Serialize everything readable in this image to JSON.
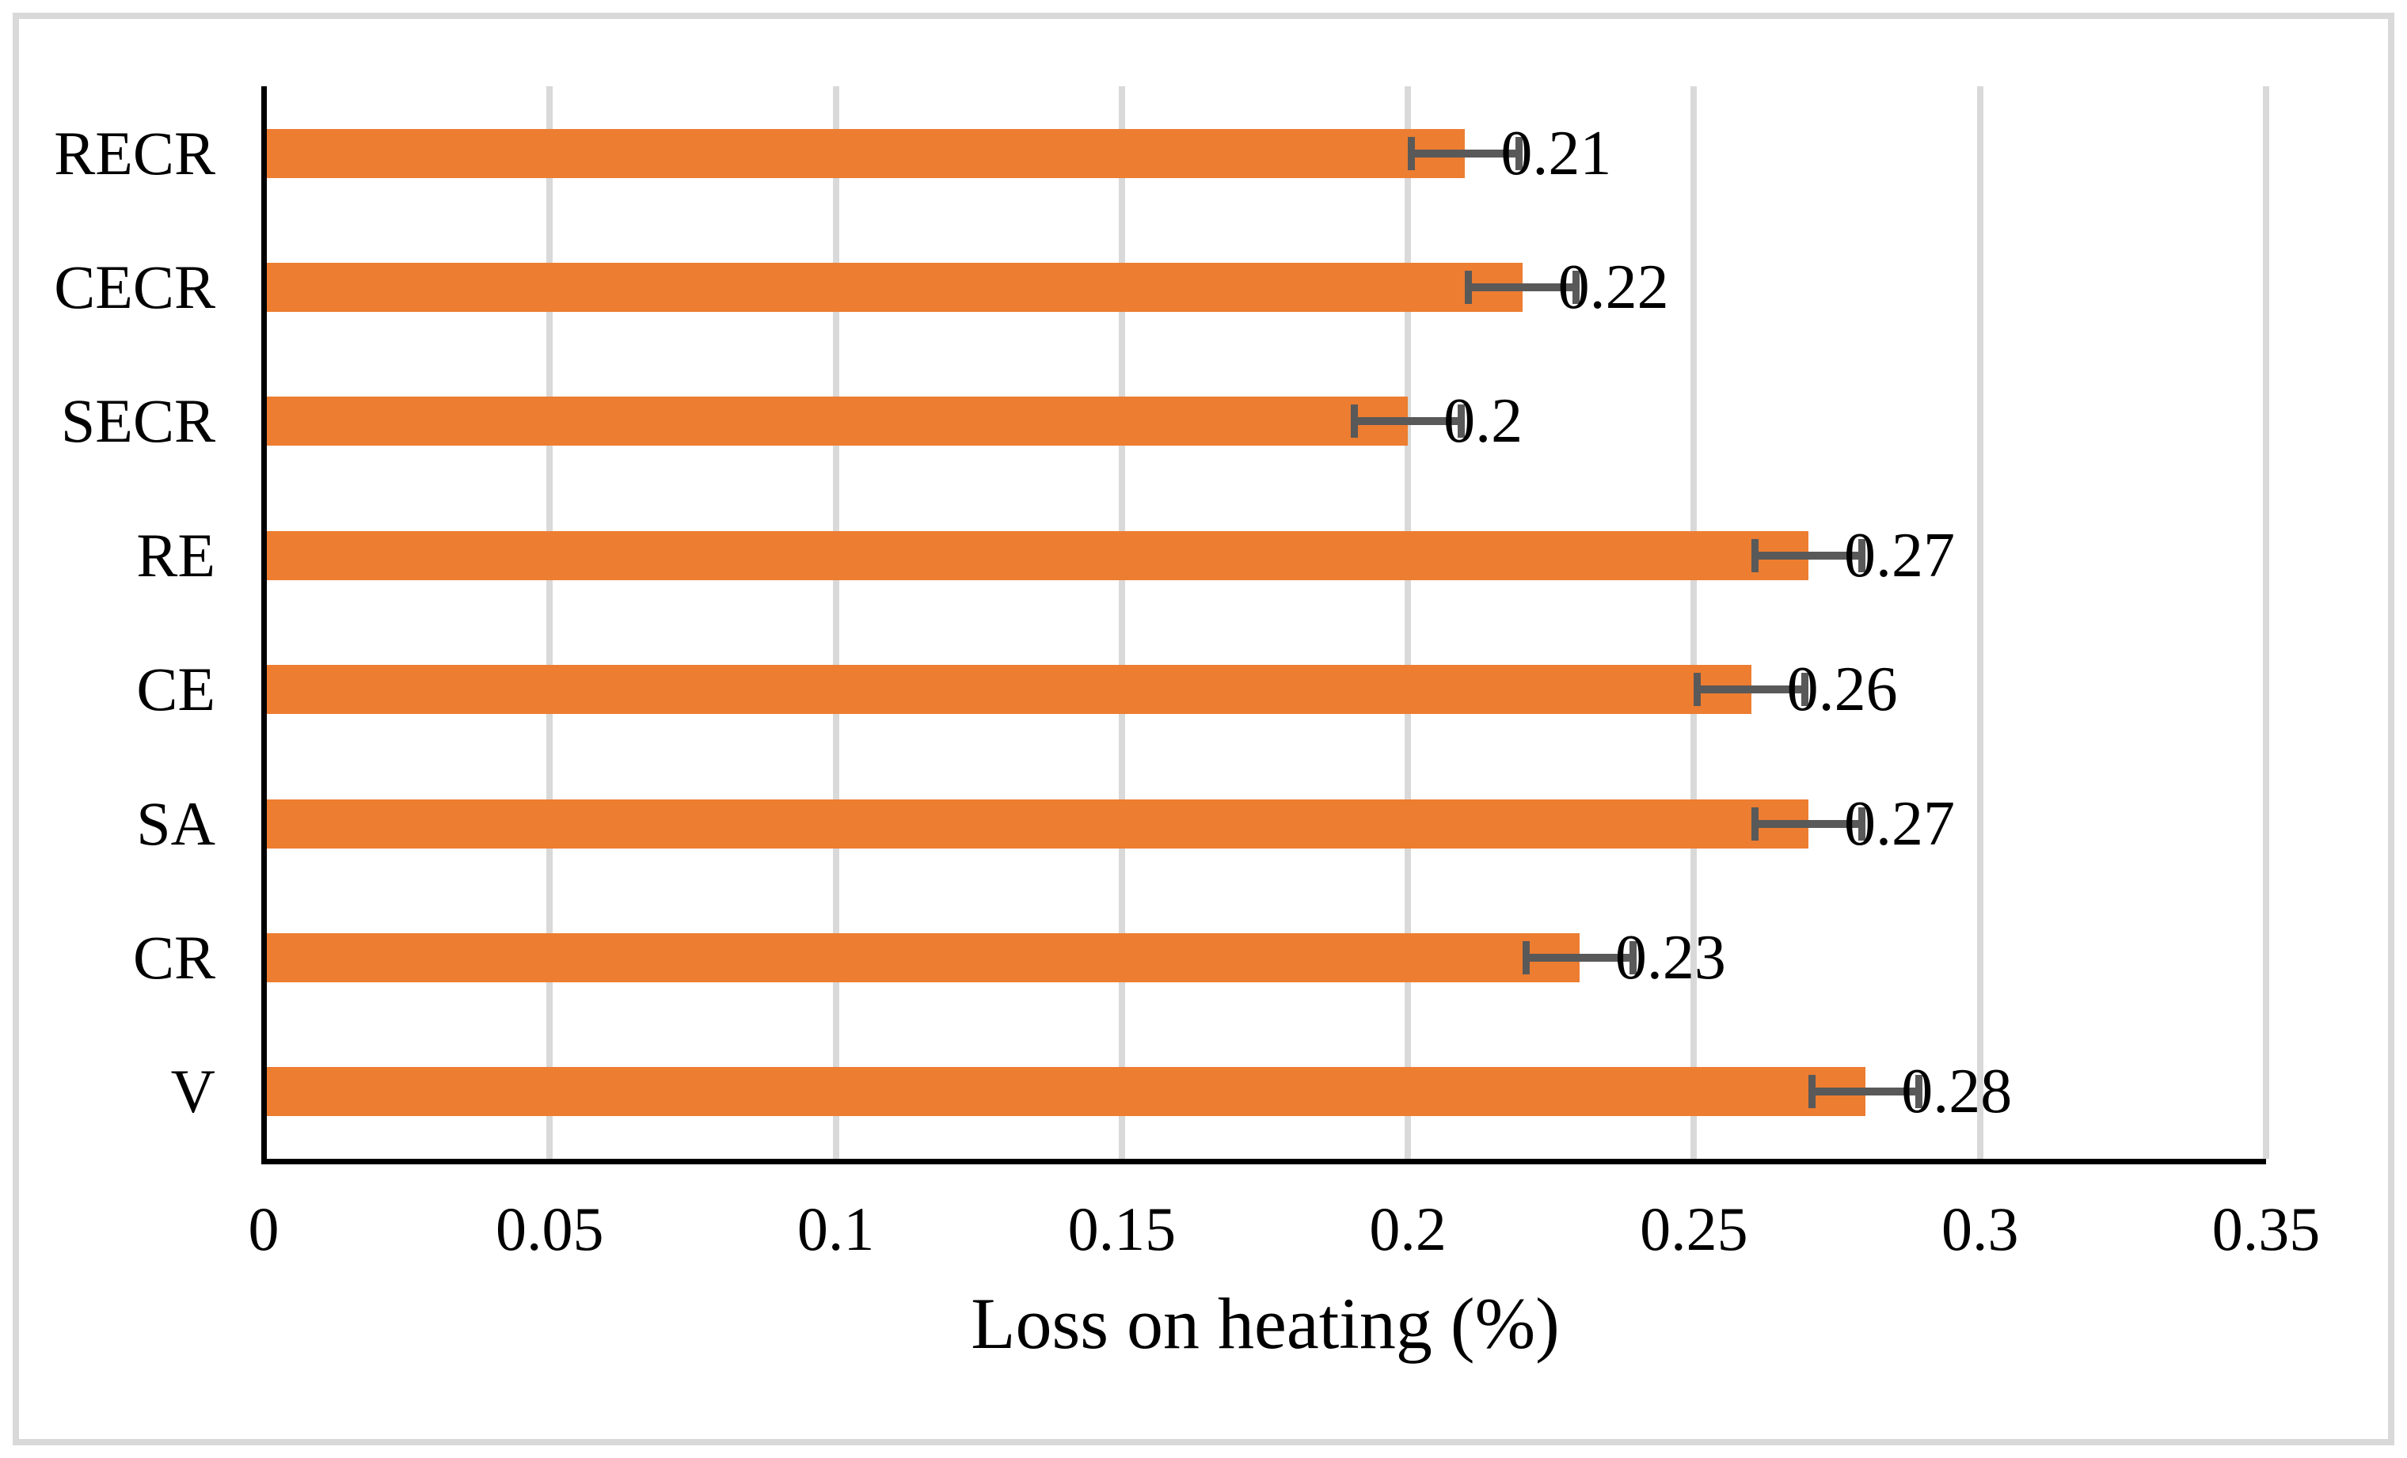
{
  "chart_data": {
    "type": "bar",
    "orientation": "horizontal",
    "title": "",
    "xlabel": "Loss on heating (%)",
    "ylabel": "",
    "categories": [
      "RECR",
      "CECR",
      "SECR",
      "RE",
      "CE",
      "SA",
      "CR",
      "V"
    ],
    "values": [
      0.21,
      0.22,
      0.2,
      0.27,
      0.26,
      0.27,
      0.23,
      0.28
    ],
    "data_labels": [
      "0.21",
      "0.22",
      "0.2",
      "0.27",
      "0.26",
      "0.27",
      "0.23",
      "0.28"
    ],
    "error_bars": {
      "plus": 0.01,
      "minus": 0.01
    },
    "xlim": [
      0,
      0.35
    ],
    "x_tick_labels": [
      "0",
      "0.05",
      "0.1",
      "0.15",
      "0.2",
      "0.25",
      "0.3",
      "0.35"
    ],
    "x_tick_values": [
      0,
      0.05,
      0.1,
      0.15,
      0.2,
      0.25,
      0.3,
      0.35
    ],
    "grid": true,
    "legend": false,
    "colors": {
      "bar": "#ED7D31",
      "error_bar": "#595959",
      "gridline": "#D9D9D9",
      "axis_line": "#000000",
      "text": "#000000",
      "frame_border": "#D9D9D9",
      "background": "#FFFFFF"
    }
  }
}
